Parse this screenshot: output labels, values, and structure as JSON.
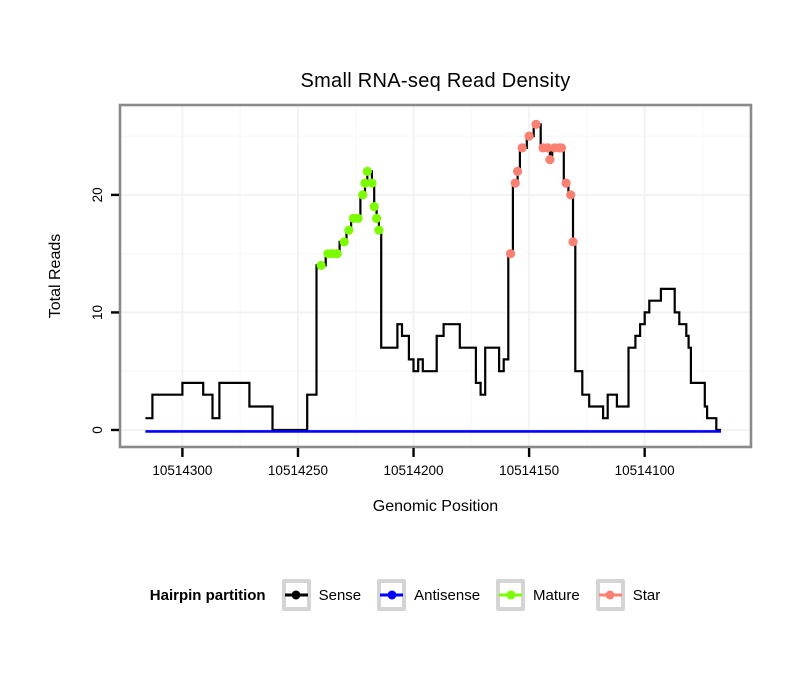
{
  "chart_data": {
    "type": "line",
    "title": "Small RNA-seq Read Density",
    "xlabel": "Genomic Position",
    "ylabel": "Total Reads",
    "x_axis": {
      "reversed": true,
      "min": 10514054,
      "max": 10514327,
      "ticks": [
        10514300,
        10514250,
        10514200,
        10514150,
        10514100
      ],
      "minor_ticks": [
        10514275,
        10514225,
        10514175,
        10514125,
        10514075
      ]
    },
    "y_axis": {
      "min": -1.45,
      "max": 27.65,
      "ticks": [
        0,
        10,
        20
      ],
      "minor_ticks": [
        5,
        15,
        25
      ]
    },
    "grid": {
      "major_color": "#f3f3f3",
      "minor_color": "#fafafa",
      "panel_bg": "#ffffff",
      "panel_border": "#8a8a8a"
    },
    "series": [
      {
        "name": "Sense",
        "color": "#000000",
        "style": "step",
        "points": [
          [
            10514316,
            1
          ],
          [
            10514313,
            3
          ],
          [
            10514300,
            4
          ],
          [
            10514291,
            3
          ],
          [
            10514287,
            1
          ],
          [
            10514284,
            4
          ],
          [
            10514271,
            2
          ],
          [
            10514261,
            0
          ],
          [
            10514246,
            3
          ],
          [
            10514242,
            14
          ],
          [
            10514238,
            15
          ],
          [
            10514232,
            16
          ],
          [
            10514229,
            17
          ],
          [
            10514227,
            18
          ],
          [
            10514223,
            20
          ],
          [
            10514221,
            21
          ],
          [
            10514220,
            22
          ],
          [
            10514218,
            21
          ],
          [
            10514217,
            19
          ],
          [
            10514216,
            18
          ],
          [
            10514215,
            17
          ],
          [
            10514214,
            7
          ],
          [
            10514207,
            9
          ],
          [
            10514205,
            8
          ],
          [
            10514202,
            6
          ],
          [
            10514200,
            5
          ],
          [
            10514198,
            6
          ],
          [
            10514196,
            5
          ],
          [
            10514190,
            8
          ],
          [
            10514187,
            9
          ],
          [
            10514180,
            7
          ],
          [
            10514173,
            4
          ],
          [
            10514171,
            3
          ],
          [
            10514169,
            7
          ],
          [
            10514163,
            5
          ],
          [
            10514161,
            6
          ],
          [
            10514159,
            15
          ],
          [
            10514157,
            21
          ],
          [
            10514155,
            22
          ],
          [
            10514154,
            24
          ],
          [
            10514151,
            25
          ],
          [
            10514148,
            26
          ],
          [
            10514145,
            24
          ],
          [
            10514141,
            23
          ],
          [
            10514140,
            24
          ],
          [
            10514135,
            21
          ],
          [
            10514133,
            20
          ],
          [
            10514131,
            16
          ],
          [
            10514130,
            5
          ],
          [
            10514127,
            3
          ],
          [
            10514124,
            2
          ],
          [
            10514118,
            1
          ],
          [
            10514116,
            3
          ],
          [
            10514112,
            2
          ],
          [
            10514107,
            7
          ],
          [
            10514104,
            8
          ],
          [
            10514102,
            9
          ],
          [
            10514100,
            10
          ],
          [
            10514098,
            11
          ],
          [
            10514093,
            12
          ],
          [
            10514087,
            10
          ],
          [
            10514085,
            9
          ],
          [
            10514082,
            8
          ],
          [
            10514081,
            7
          ],
          [
            10514080,
            4
          ],
          [
            10514074,
            2
          ],
          [
            10514073,
            1
          ],
          [
            10514069,
            0
          ],
          [
            10514067,
            0
          ]
        ]
      },
      {
        "name": "Antisense",
        "color": "#0000ff",
        "style": "line",
        "points": [
          [
            10514316,
            0
          ],
          [
            10514067,
            0
          ]
        ]
      },
      {
        "name": "Mature",
        "color": "#7cfc00",
        "style": "points",
        "points": [
          [
            10514240,
            14
          ],
          [
            10514237,
            15
          ],
          [
            10514235,
            15
          ],
          [
            10514233,
            15
          ],
          [
            10514230,
            16
          ],
          [
            10514228,
            17
          ],
          [
            10514226,
            18
          ],
          [
            10514224,
            18
          ],
          [
            10514222,
            20
          ],
          [
            10514221,
            21
          ],
          [
            10514220,
            22
          ],
          [
            10514218,
            21
          ],
          [
            10514217,
            19
          ],
          [
            10514216,
            18
          ],
          [
            10514215,
            17
          ]
        ]
      },
      {
        "name": "Star",
        "color": "#fa8072",
        "style": "points",
        "points": [
          [
            10514158,
            15
          ],
          [
            10514156,
            21
          ],
          [
            10514155,
            22
          ],
          [
            10514153,
            24
          ],
          [
            10514150,
            25
          ],
          [
            10514147,
            26
          ],
          [
            10514144,
            24
          ],
          [
            10514142,
            24
          ],
          [
            10514139,
            24
          ],
          [
            10514137,
            24
          ],
          [
            10514136,
            24
          ],
          [
            10514141,
            23
          ],
          [
            10514134,
            21
          ],
          [
            10514132,
            20
          ],
          [
            10514131,
            16
          ]
        ]
      }
    ],
    "legend": {
      "title": "Hairpin partition",
      "position": "bottom",
      "items": [
        {
          "label": "Sense",
          "color": "#000000"
        },
        {
          "label": "Antisense",
          "color": "#0000ff"
        },
        {
          "label": "Mature",
          "color": "#7cfc00"
        },
        {
          "label": "Star",
          "color": "#fa8072"
        }
      ]
    }
  }
}
